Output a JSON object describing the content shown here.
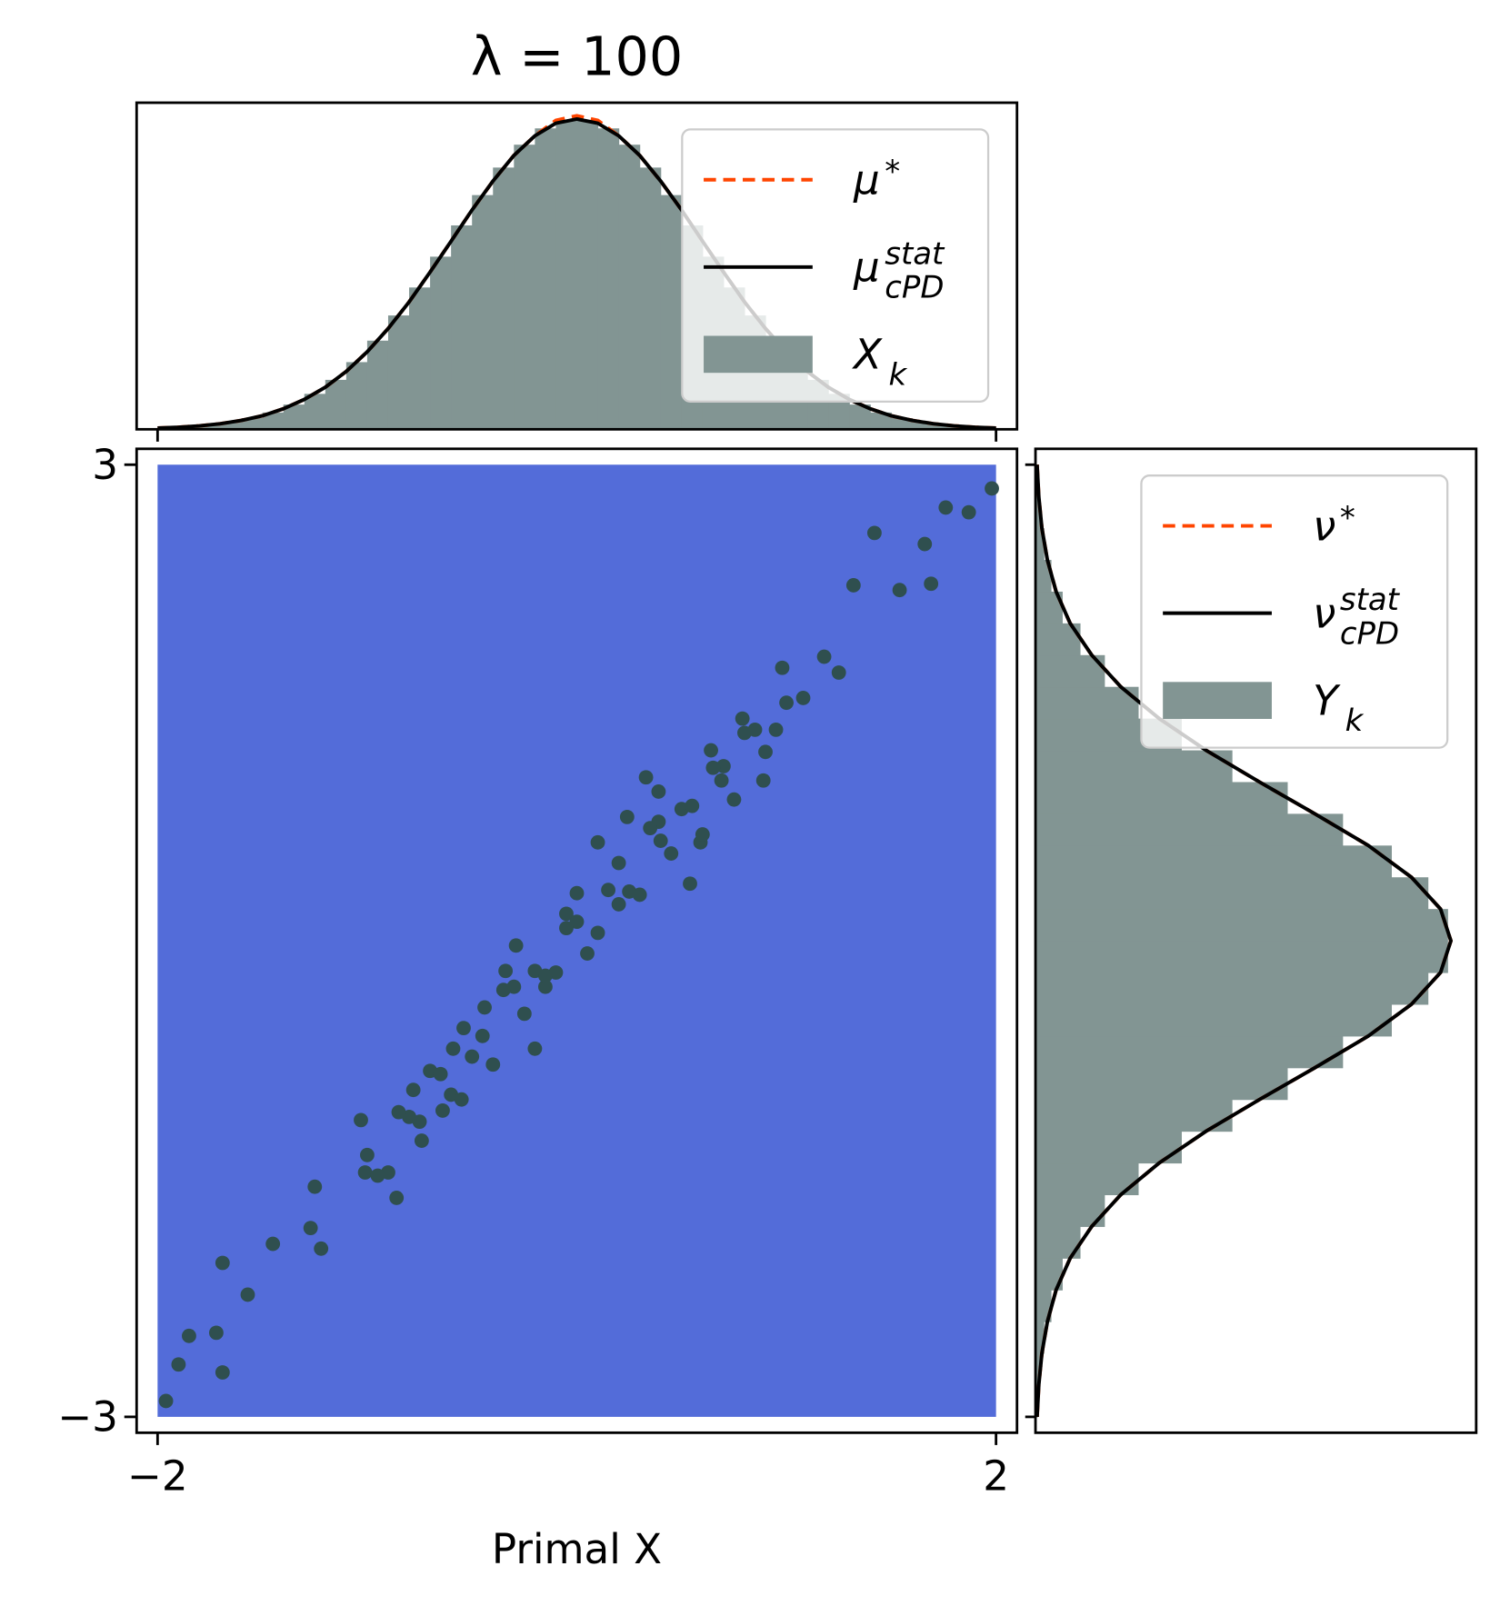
{
  "chart_data": [
    {
      "type": "scatter",
      "title": "λ = 100",
      "xlabel": "Primal X",
      "xlim": [
        -2.1,
        2.1
      ],
      "ylim": [
        -3.1,
        3.1
      ],
      "xticks": [
        {
          "value": -2,
          "label": "−2"
        },
        2
      ],
      "yticks": [
        {
          "value": -3,
          "label": "−3"
        },
        3
      ],
      "color": "#2f4f4f",
      "region": {
        "x": [
          -2,
          2
        ],
        "y": [
          -3,
          3
        ],
        "color": "#536cd9"
      },
      "x": [
        -1.96,
        -1.9,
        -1.85,
        -1.69,
        -1.72,
        -1.69,
        -1.57,
        -1.45,
        -1.27,
        -1.22,
        -1.25,
        -1.03,
        -0.86,
        -1.01,
        -0.78,
        -0.59,
        -0.34,
        -0.2,
        -0.05,
        0.1,
        0.33,
        0.54,
        0.64,
        0.79,
        0.98,
        1.18,
        1.42,
        1.32,
        1.69,
        1.76,
        1.87,
        1.98,
        1.66,
        1.54,
        1.25,
        0.89,
        0.24,
        0.2,
        -0.15,
        -0.44,
        -0.64,
        -0.74,
        -0.54,
        -0.29,
        0.0,
        0.39,
        0.69,
        1.08,
        0.39,
        0.59,
        -1.0,
        -0.9,
        -0.8,
        -0.7,
        -0.6,
        -0.5,
        -0.4,
        -0.3,
        -0.2,
        -0.1,
        0.0,
        0.1,
        0.2,
        0.3,
        0.4,
        0.5,
        0.6,
        0.7,
        0.8,
        0.9,
        1.0,
        -0.95,
        -0.85,
        -0.75,
        -0.65,
        -0.55,
        -0.45,
        -0.35,
        -0.25,
        -0.15,
        -0.05,
        0.05,
        0.15,
        0.25,
        0.35,
        0.45,
        0.55,
        0.65,
        0.75,
        0.85,
        0.95
      ],
      "values": [
        -2.9,
        -2.67,
        -2.49,
        -2.72,
        -2.47,
        -2.03,
        -2.23,
        -1.91,
        -1.81,
        -1.94,
        -1.55,
        -1.13,
        -1.62,
        -1.46,
        -0.94,
        -0.68,
        -0.19,
        -0.68,
        0.17,
        0.62,
        1.03,
        0.36,
        1.2,
        1.4,
        1.72,
        1.79,
        2.57,
        2.24,
        2.25,
        2.73,
        2.7,
        2.85,
        2.5,
        2.21,
        1.69,
        1.01,
        0.78,
        0.23,
        -0.29,
        -0.42,
        -1.07,
        -1.26,
        -0.55,
        -0.03,
        0.3,
        0.75,
        1.01,
        1.53,
        0.94,
        0.62,
        -1.35,
        -1.46,
        -1.11,
        -0.82,
        -0.97,
        -0.73,
        -0.78,
        -0.29,
        -0.19,
        -0.2,
        0.12,
        0.05,
        0.49,
        0.29,
        0.63,
        0.83,
        0.67,
        1.1,
        1.31,
        1.19,
        1.5,
        -1.48,
        -1.08,
        -1.14,
        -0.84,
        -1.0,
        -0.6,
        -0.31,
        -0.46,
        -0.22,
        0.08,
        -0.08,
        0.32,
        0.31,
        0.71,
        0.55,
        0.85,
        1.09,
        0.89,
        1.33,
        1.33
      ]
    },
    {
      "type": "histogram",
      "orientation": "vertical",
      "legend": "upper right",
      "xlim": [
        -2.1,
        2.1
      ],
      "ylim": [
        0,
        0.7
      ],
      "xticks": [
        -2,
        2
      ],
      "series": [
        {
          "name": "μ",
          "superscript": "*",
          "color": "#ff4500",
          "style": "dashed",
          "x": [
            -2,
            -1.9,
            -1.8,
            -1.7,
            -1.6,
            -1.5,
            -1.4,
            -1.3,
            -1.2,
            -1.1,
            -1,
            -0.9,
            -0.8,
            -0.7,
            -0.6,
            -0.5,
            -0.4,
            -0.3,
            -0.2,
            -0.1,
            0,
            0.1,
            0.2,
            0.3,
            0.4,
            0.5,
            0.6,
            0.7,
            0.8,
            0.9,
            1,
            1.1,
            1.2,
            1.3,
            1.4,
            1.5,
            1.6,
            1.7,
            1.8,
            1.9,
            2
          ],
          "values": [
            0.0026,
            0.0044,
            0.0074,
            0.012,
            0.019,
            0.029,
            0.044,
            0.064,
            0.09,
            0.124,
            0.166,
            0.216,
            0.273,
            0.337,
            0.403,
            0.47,
            0.532,
            0.587,
            0.629,
            0.662,
            0.672,
            0.662,
            0.629,
            0.587,
            0.532,
            0.47,
            0.403,
            0.337,
            0.273,
            0.216,
            0.166,
            0.124,
            0.09,
            0.064,
            0.044,
            0.029,
            0.019,
            0.012,
            0.0074,
            0.0044,
            0.0026
          ]
        },
        {
          "name": "μ",
          "superscript": "stat",
          "subscript": "cPD",
          "color": "#000000",
          "style": "solid",
          "x": [
            -2,
            -1.9,
            -1.8,
            -1.7,
            -1.6,
            -1.5,
            -1.4,
            -1.3,
            -1.2,
            -1.1,
            -1,
            -0.9,
            -0.8,
            -0.7,
            -0.6,
            -0.5,
            -0.4,
            -0.3,
            -0.2,
            -0.1,
            0,
            0.1,
            0.2,
            0.3,
            0.4,
            0.5,
            0.6,
            0.7,
            0.8,
            0.9,
            1,
            1.1,
            1.2,
            1.3,
            1.4,
            1.5,
            1.6,
            1.7,
            1.8,
            1.9,
            2
          ],
          "values": [
            0.0026,
            0.0044,
            0.0074,
            0.012,
            0.019,
            0.029,
            0.044,
            0.064,
            0.09,
            0.124,
            0.166,
            0.216,
            0.273,
            0.337,
            0.403,
            0.47,
            0.532,
            0.587,
            0.629,
            0.656,
            0.665,
            0.656,
            0.629,
            0.587,
            0.532,
            0.47,
            0.403,
            0.337,
            0.273,
            0.216,
            0.166,
            0.124,
            0.09,
            0.064,
            0.044,
            0.029,
            0.019,
            0.012,
            0.0074,
            0.0044,
            0.0026
          ]
        },
        {
          "name": "X",
          "subscript": "k",
          "color": "#829593",
          "style": "bars",
          "bins": [
            -2,
            -1.9,
            -1.8,
            -1.7,
            -1.6,
            -1.5,
            -1.4,
            -1.3,
            -1.2,
            -1.1,
            -1,
            -0.9,
            -0.8,
            -0.7,
            -0.6,
            -0.5,
            -0.4,
            -0.3,
            -0.2,
            -0.1,
            0,
            0.1,
            0.2,
            0.3,
            0.4,
            0.5,
            0.6,
            0.7,
            0.8,
            0.9,
            1,
            1.1,
            1.2,
            1.3,
            1.4,
            1.5,
            1.6,
            1.7,
            1.8,
            1.9,
            2
          ],
          "values": [
            0.0034,
            0.0058,
            0.0095,
            0.015,
            0.024,
            0.036,
            0.053,
            0.076,
            0.106,
            0.144,
            0.19,
            0.244,
            0.304,
            0.37,
            0.437,
            0.502,
            0.561,
            0.61,
            0.645,
            0.663,
            0.663,
            0.645,
            0.61,
            0.561,
            0.502,
            0.437,
            0.37,
            0.304,
            0.244,
            0.19,
            0.144,
            0.106,
            0.076,
            0.053,
            0.036,
            0.024,
            0.015,
            0.0095,
            0.0058,
            0.0034
          ]
        }
      ]
    },
    {
      "type": "histogram",
      "orientation": "horizontal",
      "legend": "upper right",
      "xlim": [
        0,
        0.47
      ],
      "ylim": [
        -3.1,
        3.1
      ],
      "yticks": [
        -3,
        3
      ],
      "series": [
        {
          "name": "ν",
          "superscript": "*",
          "color": "#ff4500",
          "style": "dashed",
          "x": [
            -3,
            -2.8,
            -2.6,
            -2.4,
            -2.2,
            -2,
            -1.8,
            -1.6,
            -1.4,
            -1.2,
            -1,
            -0.8,
            -0.6,
            -0.4,
            -0.2,
            0,
            0.2,
            0.4,
            0.6,
            0.8,
            1,
            1.2,
            1.4,
            1.6,
            1.8,
            2,
            2.2,
            2.4,
            2.6,
            2.8,
            3
          ],
          "values": [
            0.0017,
            0.0035,
            0.0068,
            0.0127,
            0.022,
            0.037,
            0.06,
            0.091,
            0.132,
            0.182,
            0.239,
            0.298,
            0.355,
            0.401,
            0.432,
            0.443,
            0.432,
            0.401,
            0.355,
            0.298,
            0.239,
            0.182,
            0.132,
            0.091,
            0.06,
            0.037,
            0.022,
            0.0127,
            0.0068,
            0.0035,
            0.0017
          ]
        },
        {
          "name": "ν",
          "superscript": "stat",
          "subscript": "cPD",
          "color": "#000000",
          "style": "solid",
          "x": [
            -3,
            -2.8,
            -2.6,
            -2.4,
            -2.2,
            -2,
            -1.8,
            -1.6,
            -1.4,
            -1.2,
            -1,
            -0.8,
            -0.6,
            -0.4,
            -0.2,
            0,
            0.2,
            0.4,
            0.6,
            0.8,
            1,
            1.2,
            1.4,
            1.6,
            1.8,
            2,
            2.2,
            2.4,
            2.6,
            2.8,
            3
          ],
          "values": [
            0.0017,
            0.0035,
            0.0068,
            0.0127,
            0.022,
            0.037,
            0.06,
            0.091,
            0.132,
            0.182,
            0.239,
            0.298,
            0.355,
            0.401,
            0.432,
            0.443,
            0.432,
            0.401,
            0.355,
            0.298,
            0.239,
            0.182,
            0.132,
            0.091,
            0.06,
            0.037,
            0.022,
            0.0127,
            0.0068,
            0.0035,
            0.0017
          ]
        },
        {
          "name": "Y",
          "subscript": "k",
          "color": "#829593",
          "style": "bars",
          "bins": [
            -3,
            -2.8,
            -2.6,
            -2.4,
            -2.2,
            -2,
            -1.8,
            -1.6,
            -1.4,
            -1.2,
            -1,
            -0.8,
            -0.6,
            -0.4,
            -0.2,
            0,
            0.2,
            0.4,
            0.6,
            0.8,
            1,
            1.2,
            1.4,
            1.6,
            1.8,
            2,
            2.2,
            2.4,
            2.6,
            2.8,
            3
          ],
          "values": [
            0.0025,
            0.0049,
            0.0094,
            0.017,
            0.029,
            0.048,
            0.074,
            0.11,
            0.156,
            0.21,
            0.269,
            0.328,
            0.38,
            0.419,
            0.44,
            0.44,
            0.419,
            0.38,
            0.328,
            0.269,
            0.21,
            0.156,
            0.11,
            0.074,
            0.048,
            0.029,
            0.017,
            0.0094,
            0.0049,
            0.0025
          ]
        }
      ]
    }
  ]
}
